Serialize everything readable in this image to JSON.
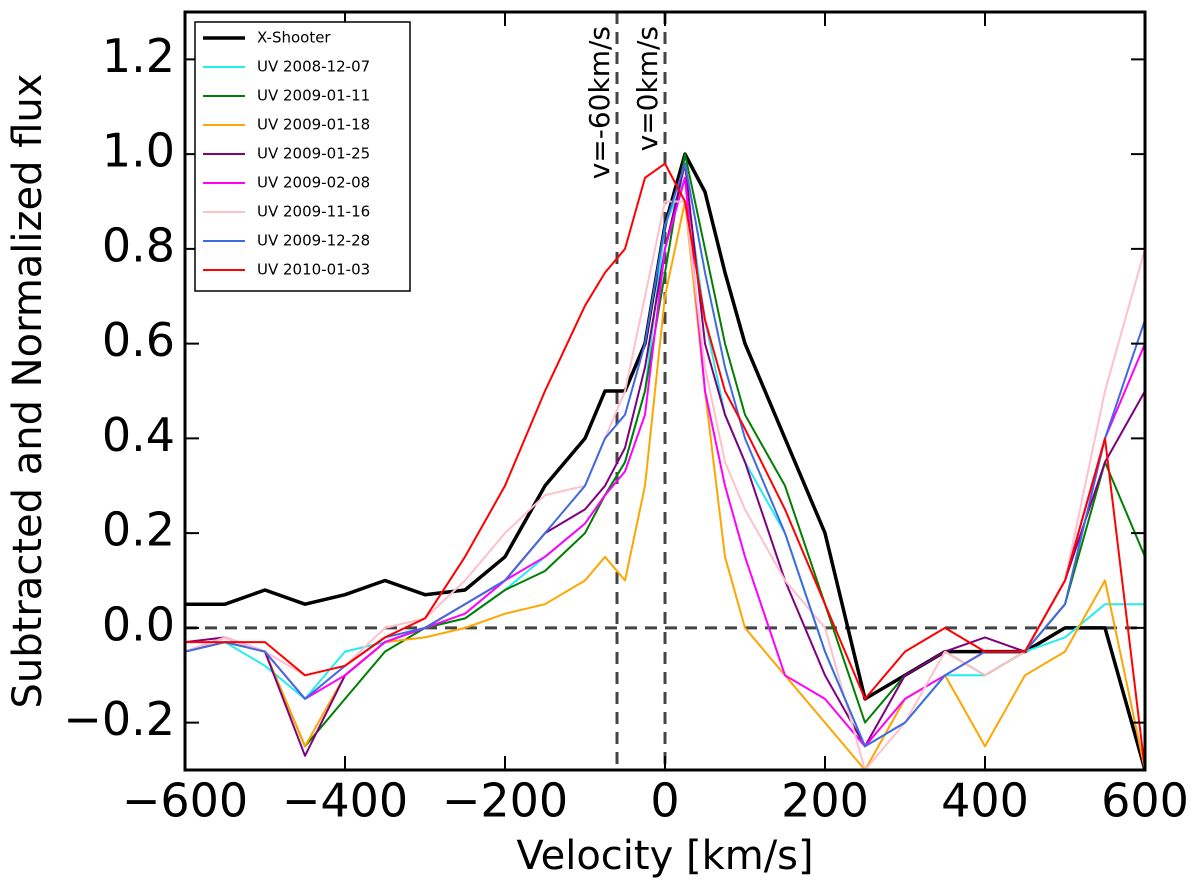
{
  "chart_data": {
    "type": "line",
    "xlabel": "Velocity [km/s]",
    "ylabel": "Subtracted and Normalized flux",
    "x": [
      -600,
      -550,
      -500,
      -450,
      -400,
      -350,
      -300,
      -250,
      -200,
      -150,
      -100,
      -75,
      -50,
      -25,
      0,
      25,
      50,
      75,
      100,
      150,
      200,
      250,
      300,
      350,
      400,
      450,
      500,
      550,
      600
    ],
    "series": [
      {
        "name": "X-Shooter",
        "color": "#000000",
        "values": [
          0.05,
          0.05,
          0.08,
          0.05,
          0.07,
          0.1,
          0.07,
          0.08,
          0.15,
          0.3,
          0.4,
          0.5,
          0.5,
          0.6,
          0.85,
          1.0,
          0.92,
          0.75,
          0.6,
          0.4,
          0.2,
          -0.15,
          -0.1,
          -0.05,
          -0.05,
          -0.05,
          0.0,
          0.0,
          -0.3
        ]
      },
      {
        "name": "UV 2008-12-07",
        "color": "#22eeee",
        "values": [
          -0.05,
          -0.03,
          -0.08,
          -0.15,
          -0.05,
          -0.03,
          0.0,
          0.02,
          0.08,
          0.15,
          0.22,
          0.28,
          0.35,
          0.5,
          0.85,
          0.95,
          0.65,
          0.45,
          0.35,
          0.2,
          -0.05,
          -0.25,
          -0.2,
          -0.1,
          -0.1,
          -0.05,
          -0.02,
          0.05,
          0.05
        ]
      },
      {
        "name": "UV 2009-01-11",
        "color": "#007f00",
        "values": [
          -0.05,
          -0.03,
          -0.05,
          -0.25,
          -0.15,
          -0.05,
          0.0,
          0.02,
          0.08,
          0.12,
          0.2,
          0.28,
          0.35,
          0.5,
          0.75,
          1.0,
          0.8,
          0.6,
          0.45,
          0.3,
          0.05,
          -0.2,
          -0.1,
          -0.05,
          -0.1,
          -0.05,
          0.05,
          0.35,
          0.15
        ]
      },
      {
        "name": "UV 2009-01-18",
        "color": "#ffa500",
        "values": [
          -0.05,
          -0.03,
          -0.05,
          -0.25,
          -0.1,
          -0.03,
          -0.02,
          0.0,
          0.03,
          0.05,
          0.1,
          0.15,
          0.1,
          0.3,
          0.7,
          0.9,
          0.5,
          0.15,
          0.0,
          -0.1,
          -0.2,
          -0.3,
          -0.15,
          -0.1,
          -0.25,
          -0.1,
          -0.05,
          0.1,
          -0.3
        ]
      },
      {
        "name": "UV 2009-01-25",
        "color": "#800080",
        "values": [
          -0.03,
          -0.02,
          -0.05,
          -0.27,
          -0.1,
          -0.03,
          0.0,
          0.05,
          0.1,
          0.2,
          0.25,
          0.3,
          0.38,
          0.55,
          0.8,
          0.98,
          0.6,
          0.45,
          0.35,
          0.1,
          -0.1,
          -0.25,
          -0.1,
          -0.05,
          -0.02,
          -0.05,
          0.1,
          0.35,
          0.5
        ]
      },
      {
        "name": "UV 2009-02-08",
        "color": "#ff00ff",
        "values": [
          -0.05,
          -0.02,
          -0.05,
          -0.15,
          -0.1,
          -0.03,
          0.0,
          0.03,
          0.1,
          0.15,
          0.22,
          0.28,
          0.33,
          0.45,
          0.8,
          0.95,
          0.5,
          0.3,
          0.15,
          -0.1,
          -0.15,
          -0.25,
          -0.15,
          -0.1,
          -0.05,
          -0.05,
          0.1,
          0.4,
          0.6
        ]
      },
      {
        "name": "UV 2009-11-16",
        "color": "#ffc0cb",
        "values": [
          -0.05,
          -0.02,
          -0.05,
          -0.1,
          -0.08,
          0.0,
          0.02,
          0.1,
          0.2,
          0.28,
          0.3,
          0.4,
          0.5,
          0.7,
          0.9,
          0.9,
          0.55,
          0.35,
          0.25,
          0.1,
          0.0,
          -0.3,
          -0.2,
          -0.05,
          -0.1,
          -0.05,
          0.1,
          0.5,
          0.8
        ]
      },
      {
        "name": "UV 2009-12-28",
        "color": "#4169e1",
        "values": [
          -0.05,
          -0.03,
          -0.05,
          -0.15,
          -0.08,
          -0.02,
          0.0,
          0.05,
          0.1,
          0.2,
          0.3,
          0.4,
          0.45,
          0.6,
          0.85,
          0.98,
          0.75,
          0.55,
          0.4,
          0.2,
          -0.05,
          -0.25,
          -0.2,
          -0.1,
          -0.05,
          -0.05,
          0.05,
          0.4,
          0.65
        ]
      },
      {
        "name": "UV 2010-01-03",
        "color": "#ff0000",
        "values": [
          -0.03,
          -0.03,
          -0.03,
          -0.1,
          -0.08,
          -0.02,
          0.02,
          0.15,
          0.3,
          0.5,
          0.68,
          0.75,
          0.8,
          0.95,
          0.98,
          0.9,
          0.65,
          0.5,
          0.42,
          0.25,
          0.05,
          -0.15,
          -0.05,
          0.0,
          -0.05,
          -0.05,
          0.1,
          0.4,
          -0.3
        ]
      }
    ],
    "xlim": [
      -600,
      600
    ],
    "ylim": [
      -0.3,
      1.3
    ],
    "xticks": [
      {
        "value": -600,
        "label": "−600"
      },
      {
        "value": -400,
        "label": "−400"
      },
      {
        "value": -200,
        "label": "−200"
      },
      0,
      200,
      400,
      600
    ],
    "yticks": [
      {
        "value": -0.2,
        "label": "−0.2"
      },
      {
        "value": 0,
        "label": "0.0"
      },
      0.2,
      0.4,
      0.6,
      0.8,
      {
        "value": 1,
        "label": "1.0"
      },
      1.2
    ],
    "vlines": [
      {
        "x": -60,
        "label": "v=-60km/s"
      },
      {
        "x": 0,
        "label": "v=0km/s"
      }
    ],
    "hline": 0,
    "legend": "upper left"
  }
}
